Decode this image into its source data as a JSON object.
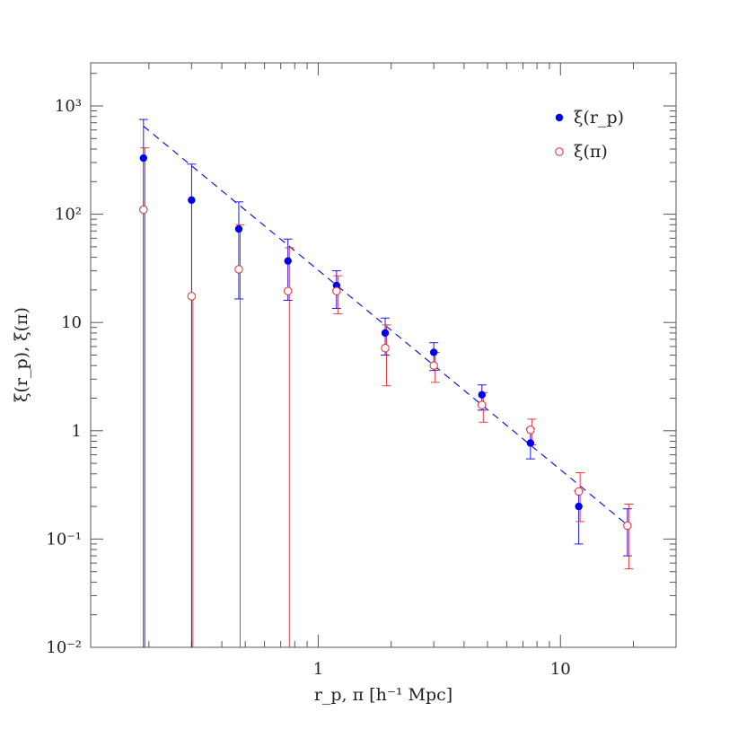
{
  "chart_data": {
    "type": "scatter",
    "x_scale": "log",
    "y_scale": "log",
    "xlim": [
      0.115,
      30
    ],
    "ylim": [
      0.01,
      2500
    ],
    "xlabel": "r_p, π [h⁻¹ Mpc]",
    "ylabel": "ξ(r_p), ξ(π)",
    "x_ticks": [
      {
        "value": 1,
        "label": "1"
      },
      {
        "value": 10,
        "label": "10"
      }
    ],
    "y_ticks": [
      {
        "value": 1000,
        "label": "10³"
      },
      {
        "value": 100,
        "label": "10²"
      },
      {
        "value": 10,
        "label": "10"
      },
      {
        "value": 1,
        "label": "1"
      },
      {
        "value": 0.1,
        "label": "10⁻¹"
      },
      {
        "value": 0.01,
        "label": "10⁻²"
      }
    ],
    "legend_position": "top-right",
    "grid": false,
    "series": [
      {
        "name": "ξ(r_p)",
        "marker": "filled-circle",
        "color": "#0000ee",
        "x": [
          0.19,
          0.3,
          0.47,
          0.75,
          1.19,
          1.89,
          3.0,
          4.74,
          7.52,
          11.9,
          18.9
        ],
        "y": [
          330,
          135,
          73,
          37,
          22,
          8.0,
          5.3,
          2.15,
          0.77,
          0.2,
          0.133
        ],
        "err_low": [
          0.01,
          0.01,
          16.5,
          16,
          13.5,
          5.0,
          3.6,
          1.55,
          0.55,
          0.09,
          0.07
        ],
        "err_high": [
          750,
          290,
          130,
          59,
          30,
          11,
          6.5,
          2.65,
          1.05,
          0.28,
          0.19
        ]
      },
      {
        "name": "ξ(π)",
        "marker": "open-circle",
        "color": "#e8262c",
        "x": [
          0.19,
          0.3,
          0.47,
          0.75,
          1.19,
          1.89,
          3.0,
          4.74,
          7.52,
          11.9,
          18.9
        ],
        "y": [
          110,
          17.5,
          31,
          19.5,
          19.5,
          5.8,
          4.0,
          1.73,
          1.02,
          0.275,
          0.133
        ],
        "err_low": [
          0.01,
          0.01,
          0.01,
          0.01,
          12,
          2.6,
          2.8,
          1.2,
          0.74,
          0.145,
          0.053
        ],
        "err_high": [
          410,
          0,
          80,
          49,
          27,
          9.5,
          5.3,
          2.25,
          1.28,
          0.41,
          0.21
        ]
      }
    ],
    "fit_line": {
      "style": "dashed",
      "color": "#0000ee",
      "x": [
        0.19,
        18.9
      ],
      "y": [
        650,
        0.135
      ]
    }
  }
}
